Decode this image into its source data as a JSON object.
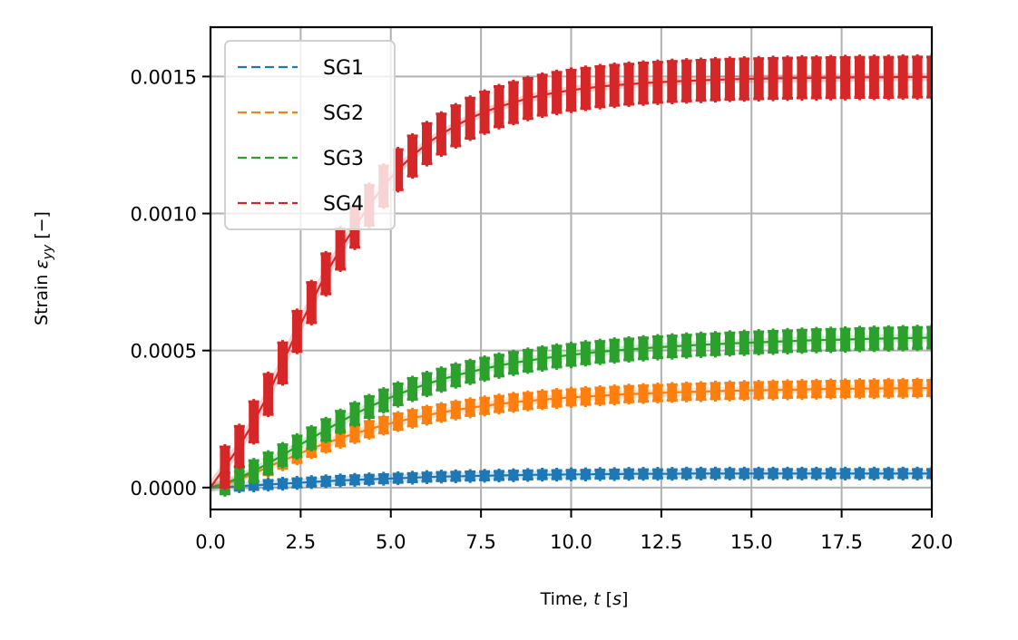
{
  "chart_data": {
    "type": "line",
    "title": "",
    "xlabel": "Time, t [s]",
    "ylabel": "Strain ε_yy  [−]",
    "xlim": [
      0,
      20
    ],
    "ylim": [
      -8e-05,
      0.00168
    ],
    "grid": true,
    "legend_position": "top-left",
    "x_ticks": [
      0.0,
      2.5,
      5.0,
      7.5,
      10.0,
      12.5,
      15.0,
      17.5,
      20.0
    ],
    "x_tick_labels": [
      "0.0",
      "2.5",
      "5.0",
      "7.5",
      "10.0",
      "12.5",
      "15.0",
      "17.5",
      "20.0"
    ],
    "y_ticks": [
      0.0,
      0.0005,
      0.001,
      0.0015
    ],
    "y_tick_labels": [
      "0.0000",
      "0.0005",
      "0.0010",
      "0.0015"
    ],
    "x": [
      0.0,
      0.4,
      0.8,
      1.2,
      1.6,
      2.0,
      2.4,
      2.8,
      3.2,
      3.6,
      4.0,
      4.4,
      4.8,
      5.2,
      5.6,
      6.0,
      6.4,
      6.8,
      7.2,
      7.6,
      8.0,
      8.4,
      8.8,
      9.2,
      9.6,
      10.0,
      10.4,
      10.8,
      11.2,
      11.6,
      12.0,
      12.4,
      12.8,
      13.2,
      13.6,
      14.0,
      14.4,
      14.8,
      15.2,
      15.6,
      16.0,
      16.4,
      16.8,
      17.2,
      17.6,
      18.0,
      18.4,
      18.8,
      19.2,
      19.6,
      20.0
    ],
    "series": [
      {
        "name": "SG1",
        "color": "#1f77b4",
        "error": 1.2e-05,
        "values": [
          0.0,
          2e-06,
          5e-06,
          8e-06,
          1.1e-05,
          1.4e-05,
          1.7e-05,
          2e-05,
          2.3e-05,
          2.6e-05,
          2.8e-05,
          3e-05,
          3.2e-05,
          3.4e-05,
          3.6e-05,
          3.8e-05,
          4e-05,
          4.1e-05,
          4.2e-05,
          4.3e-05,
          4.4e-05,
          4.5e-05,
          4.6e-05,
          4.7e-05,
          4.7e-05,
          4.8e-05,
          4.8e-05,
          4.9e-05,
          4.9e-05,
          5e-05,
          5e-05,
          5e-05,
          5e-05,
          5.1e-05,
          5.1e-05,
          5.1e-05,
          5.1e-05,
          5.1e-05,
          5.1e-05,
          5.1e-05,
          5.1e-05,
          5.1e-05,
          5.1e-05,
          5.1e-05,
          5.1e-05,
          5.1e-05,
          5.1e-05,
          5.1e-05,
          5.1e-05,
          5.1e-05,
          5.1e-05
        ]
      },
      {
        "name": "SG2",
        "color": "#ff7f0e",
        "error": 2.5e-05,
        "values": [
          0.0,
          1.2e-05,
          3e-05,
          5.2e-05,
          7.5e-05,
          9.8e-05,
          0.00012,
          0.000142,
          0.000162,
          0.00018,
          0.000197,
          0.000213,
          0.000228,
          0.000241,
          0.000253,
          0.000264,
          0.000274,
          0.000283,
          0.000291,
          0.000298,
          0.000305,
          0.000311,
          0.000316,
          0.000321,
          0.000325,
          0.000329,
          0.000332,
          0.000335,
          0.000338,
          0.000341,
          0.000343,
          0.000345,
          0.000347,
          0.000349,
          0.00035,
          0.000352,
          0.000353,
          0.000354,
          0.000355,
          0.000356,
          0.000357,
          0.000358,
          0.000359,
          0.00036,
          0.00036,
          0.000361,
          0.000361,
          0.000362,
          0.000362,
          0.000363,
          0.000363
        ]
      },
      {
        "name": "SG3",
        "color": "#2ca02c",
        "error": 3.5e-05,
        "values": [
          0.0,
          1.5e-05,
          3.6e-05,
          6e-05,
          8.8e-05,
          0.000118,
          0.00015,
          0.00018,
          0.00021,
          0.00024,
          0.000268,
          0.000294,
          0.000318,
          0.00034,
          0.00036,
          0.000378,
          0.000394,
          0.000409,
          0.000422,
          0.000434,
          0.000445,
          0.000455,
          0.000463,
          0.000471,
          0.000478,
          0.000484,
          0.00049,
          0.000495,
          0.0005,
          0.000504,
          0.000508,
          0.000512,
          0.000515,
          0.000518,
          0.000521,
          0.000523,
          0.000526,
          0.000528,
          0.00053,
          0.000532,
          0.000534,
          0.000536,
          0.000538,
          0.000539,
          0.00054,
          0.000542,
          0.000543,
          0.000544,
          0.000545,
          0.000546,
          0.000547
        ]
      },
      {
        "name": "SG4",
        "color": "#d62728",
        "error": 7e-05,
        "values": [
          0.0,
          7.5e-05,
          0.00015,
          0.00024,
          0.00034,
          0.000455,
          0.00057,
          0.000675,
          0.00078,
          0.00087,
          0.00095,
          0.00103,
          0.0011,
          0.00116,
          0.00121,
          0.001255,
          0.00129,
          0.00132,
          0.001348,
          0.00137,
          0.00139,
          0.001405,
          0.00142,
          0.001432,
          0.001442,
          0.00145,
          0.001457,
          0.001463,
          0.001468,
          0.001472,
          0.001476,
          0.001479,
          0.001482,
          0.001484,
          0.001486,
          0.001488,
          0.00149,
          0.001491,
          0.001492,
          0.001493,
          0.001494,
          0.001495,
          0.001495,
          0.001496,
          0.001496,
          0.001497,
          0.001497,
          0.001497,
          0.001498,
          0.001498,
          0.001498
        ]
      }
    ]
  }
}
